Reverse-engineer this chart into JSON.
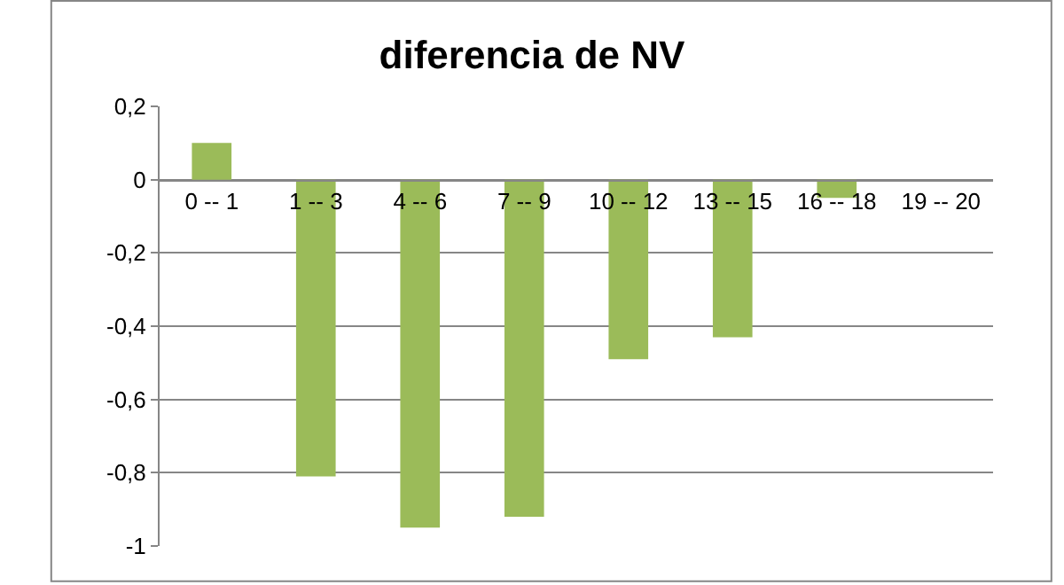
{
  "chart_data": {
    "type": "bar",
    "title": "diferencia de NV",
    "categories": [
      "0 -- 1",
      "1 -- 3",
      "4 -- 6",
      "7 -- 9",
      "10 -- 12",
      "13 -- 15",
      "16 -- 18",
      "19 -- 20"
    ],
    "values": [
      0.1,
      -0.81,
      -0.95,
      -0.92,
      -0.49,
      -0.43,
      -0.05,
      0
    ],
    "color": "#9bbb59",
    "ylim": [
      -1,
      0.2
    ],
    "yticks": [
      {
        "value": -1,
        "label": "-1"
      },
      {
        "value": -0.8,
        "label": "-0,8"
      },
      {
        "value": -0.6,
        "label": "-0,6"
      },
      {
        "value": -0.4,
        "label": "-0,4"
      },
      {
        "value": -0.2,
        "label": "-0,2"
      },
      {
        "value": 0,
        "label": "0"
      },
      {
        "value": 0.2,
        "label": "0,2"
      }
    ],
    "grid": "y",
    "legend": false
  }
}
